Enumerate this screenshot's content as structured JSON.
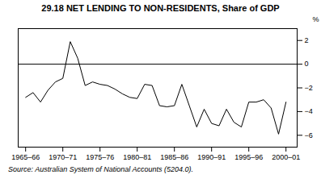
{
  "chart_data": {
    "type": "line",
    "title": "29.18   NET LENDING TO NON-RESIDENTS, Share of GDP",
    "ylabel": "%",
    "source": "Source:  Australian System of National Accounts (5204.0).",
    "x": [
      1965,
      1966,
      1967,
      1968,
      1969,
      1970,
      1971,
      1972,
      1973,
      1974,
      1975,
      1976,
      1977,
      1978,
      1979,
      1980,
      1981,
      1982,
      1983,
      1984,
      1985,
      1986,
      1987,
      1988,
      1989,
      1990,
      1991,
      1992,
      1993,
      1994,
      1995,
      1996,
      1997,
      1998,
      1999,
      2000
    ],
    "values": [
      -2.8,
      -2.4,
      -3.2,
      -2.2,
      -1.5,
      -1.2,
      1.9,
      0.5,
      -1.8,
      -1.5,
      -1.7,
      -1.8,
      -2.1,
      -2.5,
      -2.8,
      -2.9,
      -1.7,
      -1.8,
      -3.5,
      -3.6,
      -3.5,
      -1.7,
      -3.5,
      -5.3,
      -3.8,
      -5.0,
      -5.2,
      -3.8,
      -4.9,
      -5.3,
      -3.2,
      -3.2,
      -3.0,
      -3.7,
      -5.9,
      -3.2
    ],
    "color": "#000000",
    "hline": 0,
    "xlim": [
      1964,
      2001.5
    ],
    "xticks": [
      {
        "value": 1965,
        "label": "1965–66"
      },
      {
        "value": 1970,
        "label": "1970–71"
      },
      {
        "value": 1975,
        "label": "1975–76"
      },
      {
        "value": 1980,
        "label": "1980–81"
      },
      {
        "value": 1985,
        "label": "1985–86"
      },
      {
        "value": 1990,
        "label": "1990–91"
      },
      {
        "value": 1995,
        "label": "1995–96"
      },
      {
        "value": 2000,
        "label": "2000–01"
      }
    ],
    "ylim": [
      -7,
      3
    ],
    "yticks": [
      -6,
      -4,
      -2,
      0,
      2
    ],
    "grid": false
  }
}
